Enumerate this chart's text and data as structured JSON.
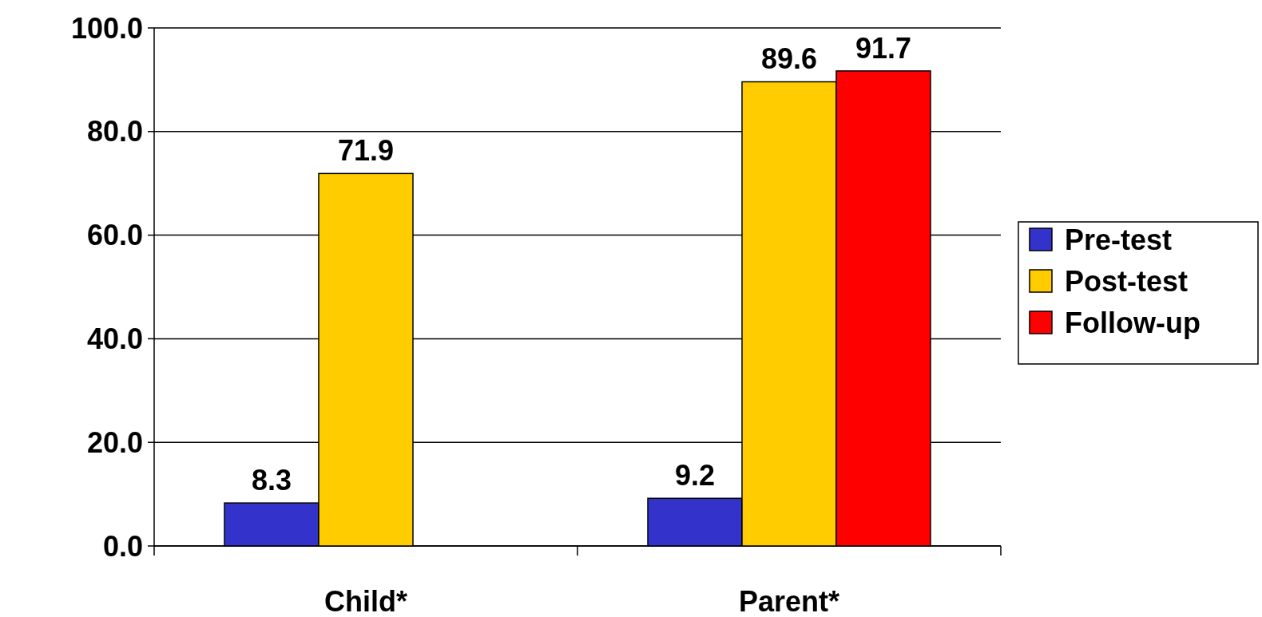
{
  "chart_data": {
    "type": "bar",
    "categories": [
      "Child*",
      "Parent*"
    ],
    "series": [
      {
        "name": "Pre-test",
        "color": "#3333cc",
        "values": [
          8.3,
          9.2
        ]
      },
      {
        "name": "Post-test",
        "color": "#ffcc00",
        "values": [
          71.9,
          89.6
        ]
      },
      {
        "name": "Follow-up",
        "color": "#ff0000",
        "values": [
          null,
          91.7
        ]
      }
    ],
    "ylim": [
      0,
      100
    ],
    "yticks": [
      {
        "value": 0,
        "label": "0.0"
      },
      {
        "value": 20,
        "label": "20.0"
      },
      {
        "value": 40,
        "label": "40.0"
      },
      {
        "value": 60,
        "label": "60.0"
      },
      {
        "value": 80,
        "label": "80.0"
      },
      {
        "value": 100,
        "label": "100.0"
      }
    ],
    "grid": "y",
    "legend": "right",
    "data_labels": true
  }
}
